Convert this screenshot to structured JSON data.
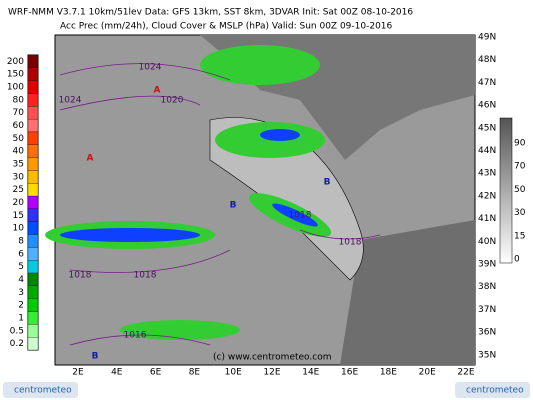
{
  "header": {
    "line1": "WRF-NMM V3.7.1 10km/51lev  Data: GFS 13km, SST 8km, 3DVAR  Init: Sat 00Z 08-10-2016",
    "line2": "Acc Prec (mm/24h), Cloud Cover & MSLP (hPa)  Valid: Sun 00Z 09-10-2016"
  },
  "precip_scale": {
    "labels": [
      "200",
      "150",
      "100",
      "80",
      "70",
      "60",
      "50",
      "40",
      "35",
      "30",
      "25",
      "20",
      "15",
      "10",
      "8",
      "6",
      "5",
      "4",
      "3",
      "2",
      "1",
      "0.5",
      "0.2"
    ],
    "colors": [
      "#7a0000",
      "#b00000",
      "#e00000",
      "#ff2020",
      "#ff5050",
      "#ff7070",
      "#ff4000",
      "#ff7000",
      "#ff9900",
      "#ffbb00",
      "#ffdd00",
      "#b000ff",
      "#3030ff",
      "#0050ff",
      "#2090ff",
      "#50b0ff",
      "#00ccdd",
      "#008800",
      "#00aa00",
      "#00cc00",
      "#33ee33",
      "#99ff99",
      "#ccffcc"
    ]
  },
  "cloud_scale": {
    "labels": [
      "90",
      "70",
      "50",
      "30",
      "15",
      "0"
    ]
  },
  "lat_labels": [
    "49N",
    "48N",
    "47N",
    "46N",
    "45N",
    "44N",
    "43N",
    "42N",
    "41N",
    "40N",
    "39N",
    "38N",
    "37N",
    "36N",
    "35N"
  ],
  "lon_labels": [
    "2E",
    "4E",
    "6E",
    "8E",
    "10E",
    "12E",
    "14E",
    "16E",
    "18E",
    "20E",
    "22E"
  ],
  "isobars": [
    "1024",
    "1024",
    "1020",
    "1018",
    "1018",
    "1018",
    "1018",
    "1016"
  ],
  "centers": [
    "A",
    "A",
    "B",
    "B",
    "B"
  ],
  "copyright": "(c) www.centrometeo.com",
  "logo_left": "centrometeo",
  "logo_right": "centrometeo"
}
